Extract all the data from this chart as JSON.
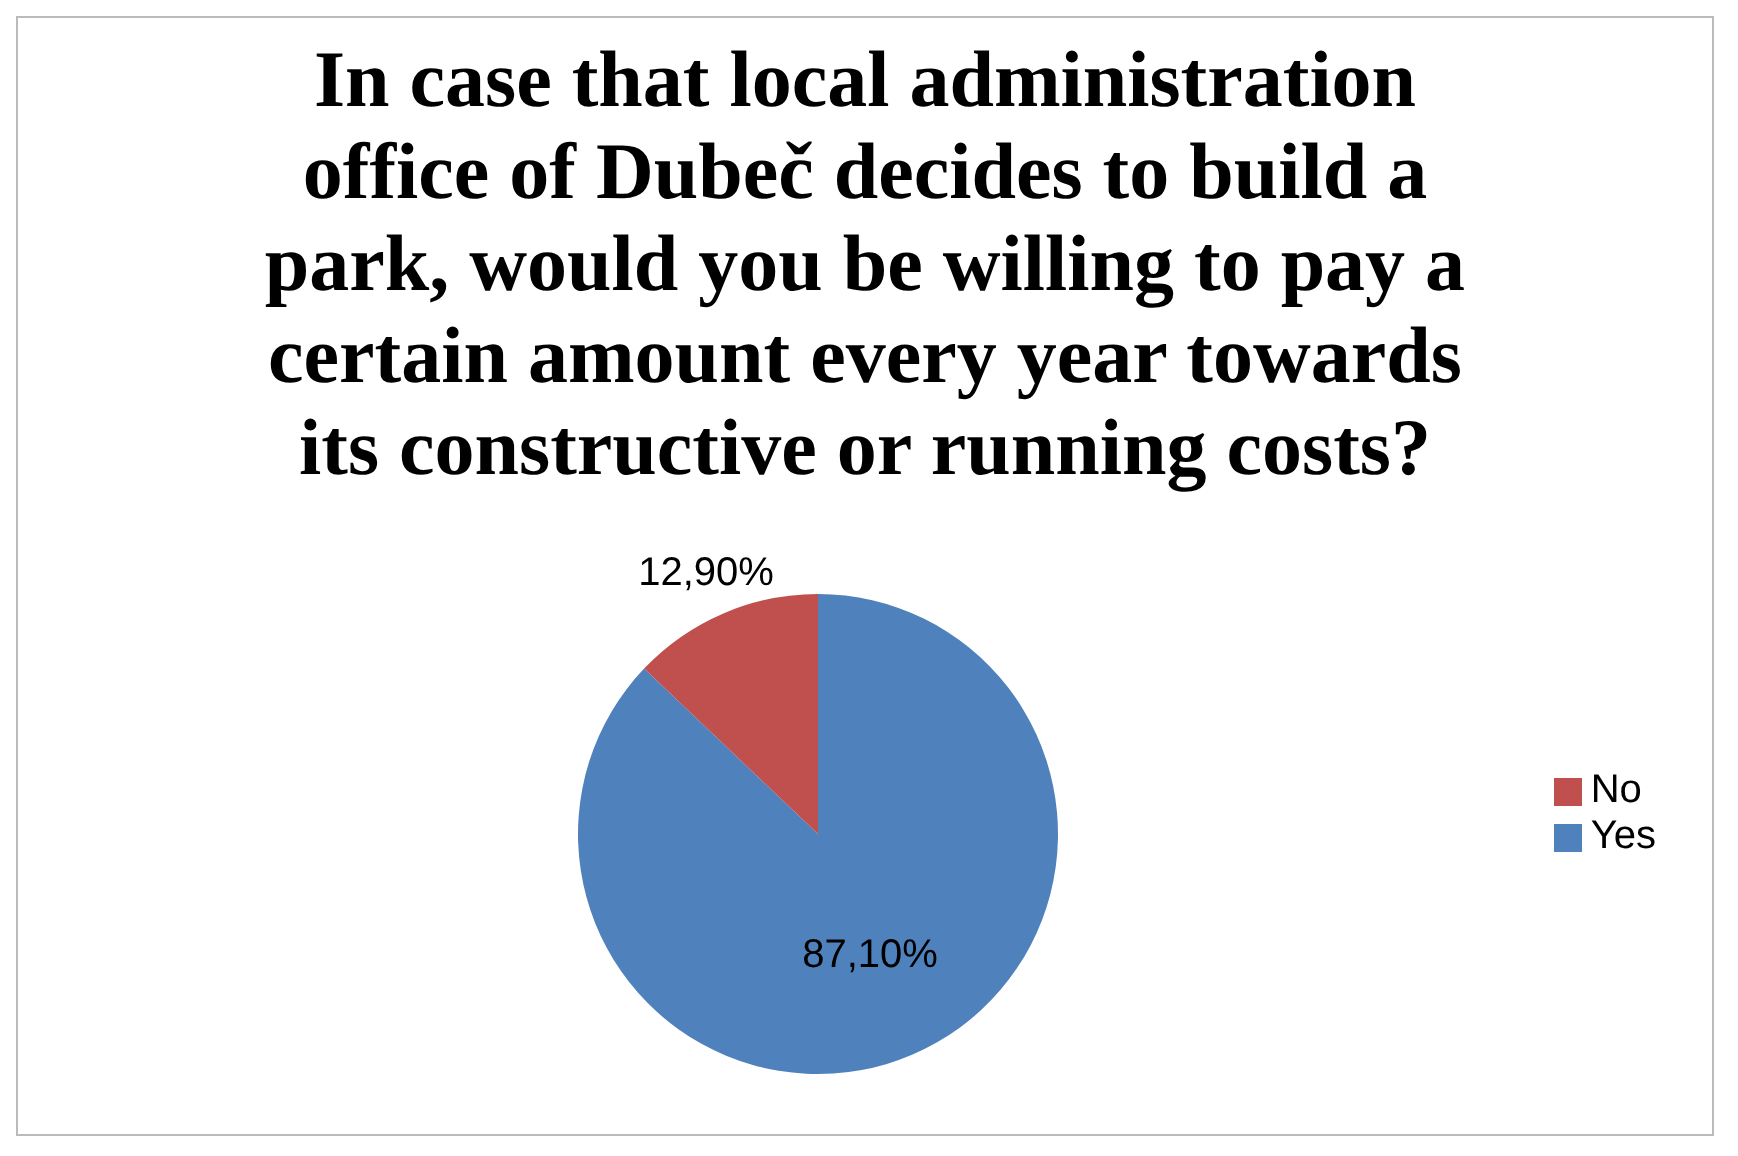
{
  "chart_data": {
    "type": "pie",
    "title": "In case that local administration office of Dubeč decides to build a park, would you be willing to pay a certain amount every year towards its constructive or running costs?",
    "categories": [
      "Yes",
      "No"
    ],
    "values": [
      87.1,
      12.9
    ],
    "value_labels": [
      "87,10%",
      "12,90%"
    ],
    "colors": [
      "#4f81bd",
      "#c0504d"
    ],
    "legend": "right"
  }
}
